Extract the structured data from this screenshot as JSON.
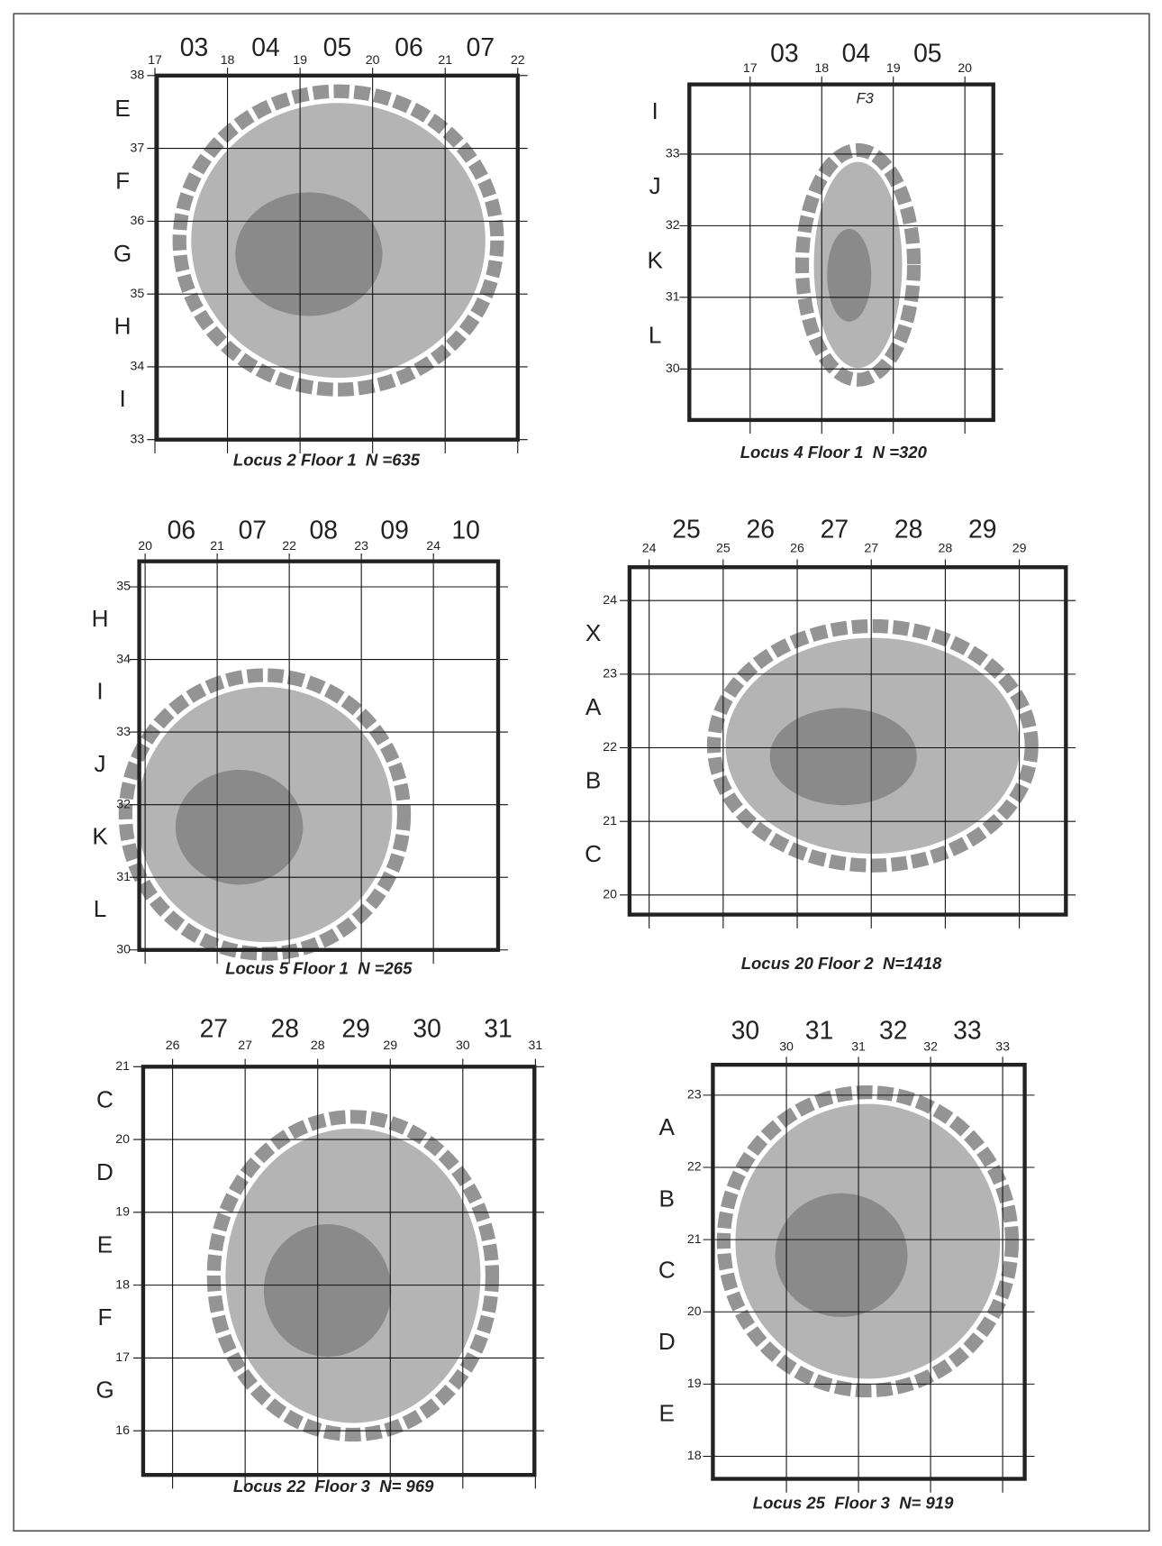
{
  "panels": [
    {
      "caption": "Locus 2 Floor 1  N =635",
      "top_numbers": [
        "17",
        "18",
        "19",
        "20",
        "21",
        "22"
      ],
      "square_labels": [
        "03",
        "04",
        "05",
        "06",
        "07"
      ],
      "side_numbers": [
        "38",
        "37",
        "36",
        "35",
        "34",
        "33"
      ],
      "row_labels": [
        "E",
        "F",
        "G",
        "H",
        "I"
      ]
    },
    {
      "caption": "Locus 4 Floor 1  N =320",
      "top_numbers": [
        "17",
        "18",
        "19",
        "20"
      ],
      "square_labels": [
        "03",
        "04",
        "05"
      ],
      "side_numbers": [
        "33",
        "32",
        "31",
        "30"
      ],
      "row_labels": [
        "I",
        "J",
        "K",
        "L"
      ],
      "note": "F3"
    },
    {
      "caption": "Locus 5 Floor 1  N =265",
      "top_numbers": [
        "20",
        "21",
        "22",
        "23",
        "24"
      ],
      "square_labels": [
        "06",
        "07",
        "08",
        "09",
        "10"
      ],
      "side_numbers": [
        "35",
        "34",
        "33",
        "32",
        "31",
        "30"
      ],
      "row_labels": [
        "H",
        "I",
        "J",
        "K",
        "L"
      ]
    },
    {
      "caption": "Locus 20 Floor 2  N=1418",
      "top_numbers": [
        "24",
        "25",
        "26",
        "27",
        "28",
        "29"
      ],
      "square_labels": [
        "25",
        "26",
        "27",
        "28",
        "29"
      ],
      "side_numbers": [
        "24",
        "23",
        "22",
        "21",
        "20"
      ],
      "row_labels": [
        "X",
        "A",
        "B",
        "C"
      ]
    },
    {
      "caption": "Locus 22  Floor 3  N= 969",
      "top_numbers": [
        "26",
        "27",
        "28",
        "29",
        "30",
        "31"
      ],
      "square_labels": [
        "27",
        "28",
        "29",
        "30",
        "31"
      ],
      "side_numbers": [
        "21",
        "20",
        "19",
        "18",
        "17",
        "16"
      ],
      "row_labels": [
        "C",
        "D",
        "E",
        "F",
        "G"
      ]
    },
    {
      "caption": "Locus 25  Floor 3  N= 919",
      "top_numbers": [
        "30",
        "31",
        "32",
        "33"
      ],
      "square_labels": [
        "30",
        "31",
        "32",
        "33"
      ],
      "side_numbers": [
        "23",
        "22",
        "21",
        "20",
        "19",
        "18"
      ],
      "row_labels": [
        "A",
        "B",
        "C",
        "D",
        "E"
      ]
    }
  ]
}
